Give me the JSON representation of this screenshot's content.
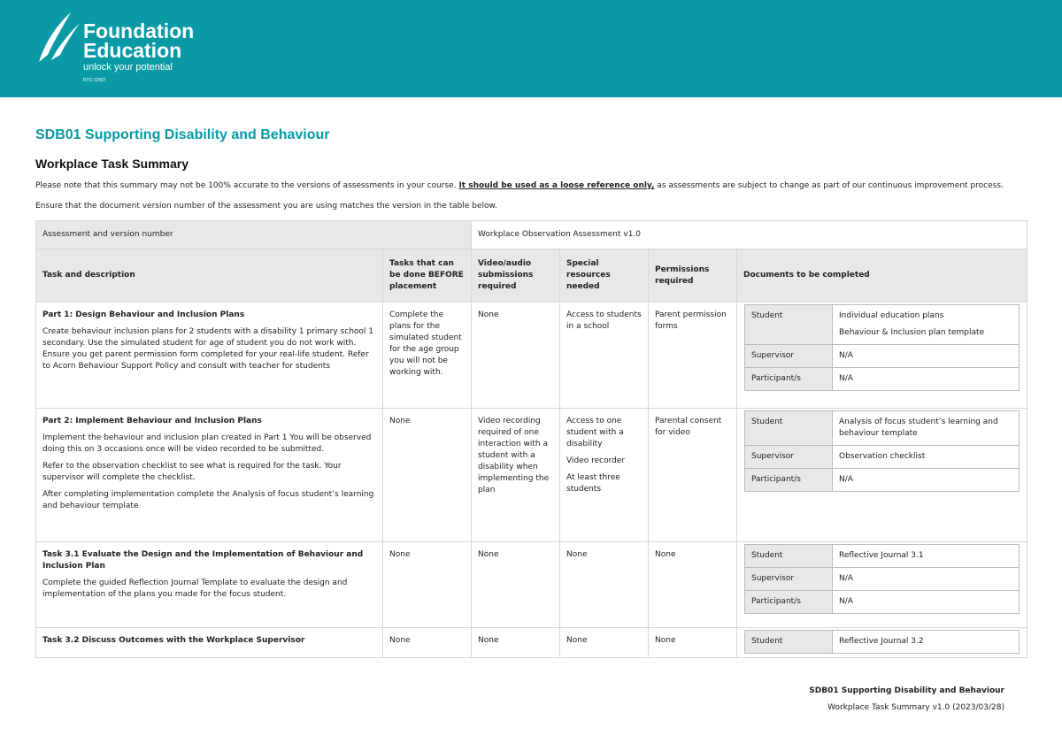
{
  "header": {
    "brand_line1": "Foundation",
    "brand_line2": "Education",
    "tagline": "unlock your potential",
    "rto": "RTO 22567"
  },
  "title": "SDB01 Supporting Disability and Behaviour",
  "subtitle": "Workplace Task Summary",
  "note": {
    "before": "Please note that this summary may not be 100% accurate to the versions of assessments in your course. ",
    "underlined": "It should be used as a loose reference only,",
    "after": " as assessments are subject to change as part of our continuous improvement process."
  },
  "note2": "Ensure that the document version number of the assessment you are using matches the version in the table below.",
  "table": {
    "version_label": "Assessment and version number",
    "version_value": "Workplace Observation Assessment v1.0",
    "headers": [
      "Task and description",
      "Tasks that can be done BEFORE placement",
      "Video/audio submissions required",
      "Special resources needed",
      "Permissions required",
      "Documents to be completed"
    ],
    "rows": [
      {
        "title": "Part 1: Design Behaviour and Inclusion Plans",
        "description": [
          "Create behaviour inclusion plans for 2 students with a disability 1 primary school 1 secondary. Use the simulated student for age of student you do not work with. Ensure you get parent permission form completed for your real-life student. Refer to Acorn Behaviour Support Policy and consult with teacher for students"
        ],
        "before": [
          "Complete the plans for the simulated student for the age group you will not be working with."
        ],
        "video": [
          "None"
        ],
        "resources": [
          "Access to students in a school"
        ],
        "permissions": [
          "Parent permission forms"
        ],
        "documents": [
          {
            "role": "Student",
            "items": [
              "Individual education plans",
              "Behaviour & Inclusion plan template"
            ]
          },
          {
            "role": "Supervisor",
            "items": [
              "N/A"
            ]
          },
          {
            "role": "Participant/s",
            "items": [
              "N/A"
            ]
          }
        ]
      },
      {
        "title": "Part 2: Implement Behaviour and Inclusion Plans",
        "description": [
          "Implement the behaviour and inclusion plan created in Part 1 You will be observed doing this on 3 occasions once will be video recorded to be submitted.",
          "Refer to the observation checklist to see what is required for the task. Your supervisor will complete the checklist.",
          "After completing implementation complete the Analysis of focus student’s learning and behaviour template"
        ],
        "before": [
          "None"
        ],
        "video": [
          "Video recording required of one interaction with a student with a disability when implementing the plan"
        ],
        "resources": [
          "Access to one student with a disability",
          "Video recorder",
          "At least three students"
        ],
        "permissions": [
          "Parental consent for video"
        ],
        "documents": [
          {
            "role": "Student",
            "items": [
              "Analysis of focus student’s learning and behaviour template"
            ]
          },
          {
            "role": "Supervisor",
            "items": [
              "Observation checklist"
            ]
          },
          {
            "role": "Participant/s",
            "items": [
              "N/A"
            ]
          }
        ]
      },
      {
        "title": "Task 3.1 Evaluate the Design and the Implementation of Behaviour and Inclusion Plan",
        "description": [
          "Complete the guided Reflection Journal Template to evaluate the design and implementation of the plans you made for the focus student."
        ],
        "before": [
          "None"
        ],
        "video": [
          "None"
        ],
        "resources": [
          "None"
        ],
        "permissions": [
          "None"
        ],
        "documents": [
          {
            "role": "Student",
            "items": [
              "Reflective Journal 3.1"
            ]
          },
          {
            "role": "Supervisor",
            "items": [
              "N/A"
            ]
          },
          {
            "role": "Participant/s",
            "items": [
              "N/A"
            ]
          }
        ]
      },
      {
        "title": "Task 3.2 Discuss Outcomes with the Workplace Supervisor",
        "description": [],
        "before": [
          "None"
        ],
        "video": [
          "None"
        ],
        "resources": [
          "None"
        ],
        "permissions": [
          "None"
        ],
        "documents": [
          {
            "role": "Student",
            "items": [
              "Reflective Journal 3.2"
            ]
          }
        ]
      }
    ]
  },
  "footer": {
    "line1": "SDB01 Supporting Disability and Behaviour",
    "line2": "Workplace Task Summary v1.0 (2023/03/28)"
  }
}
